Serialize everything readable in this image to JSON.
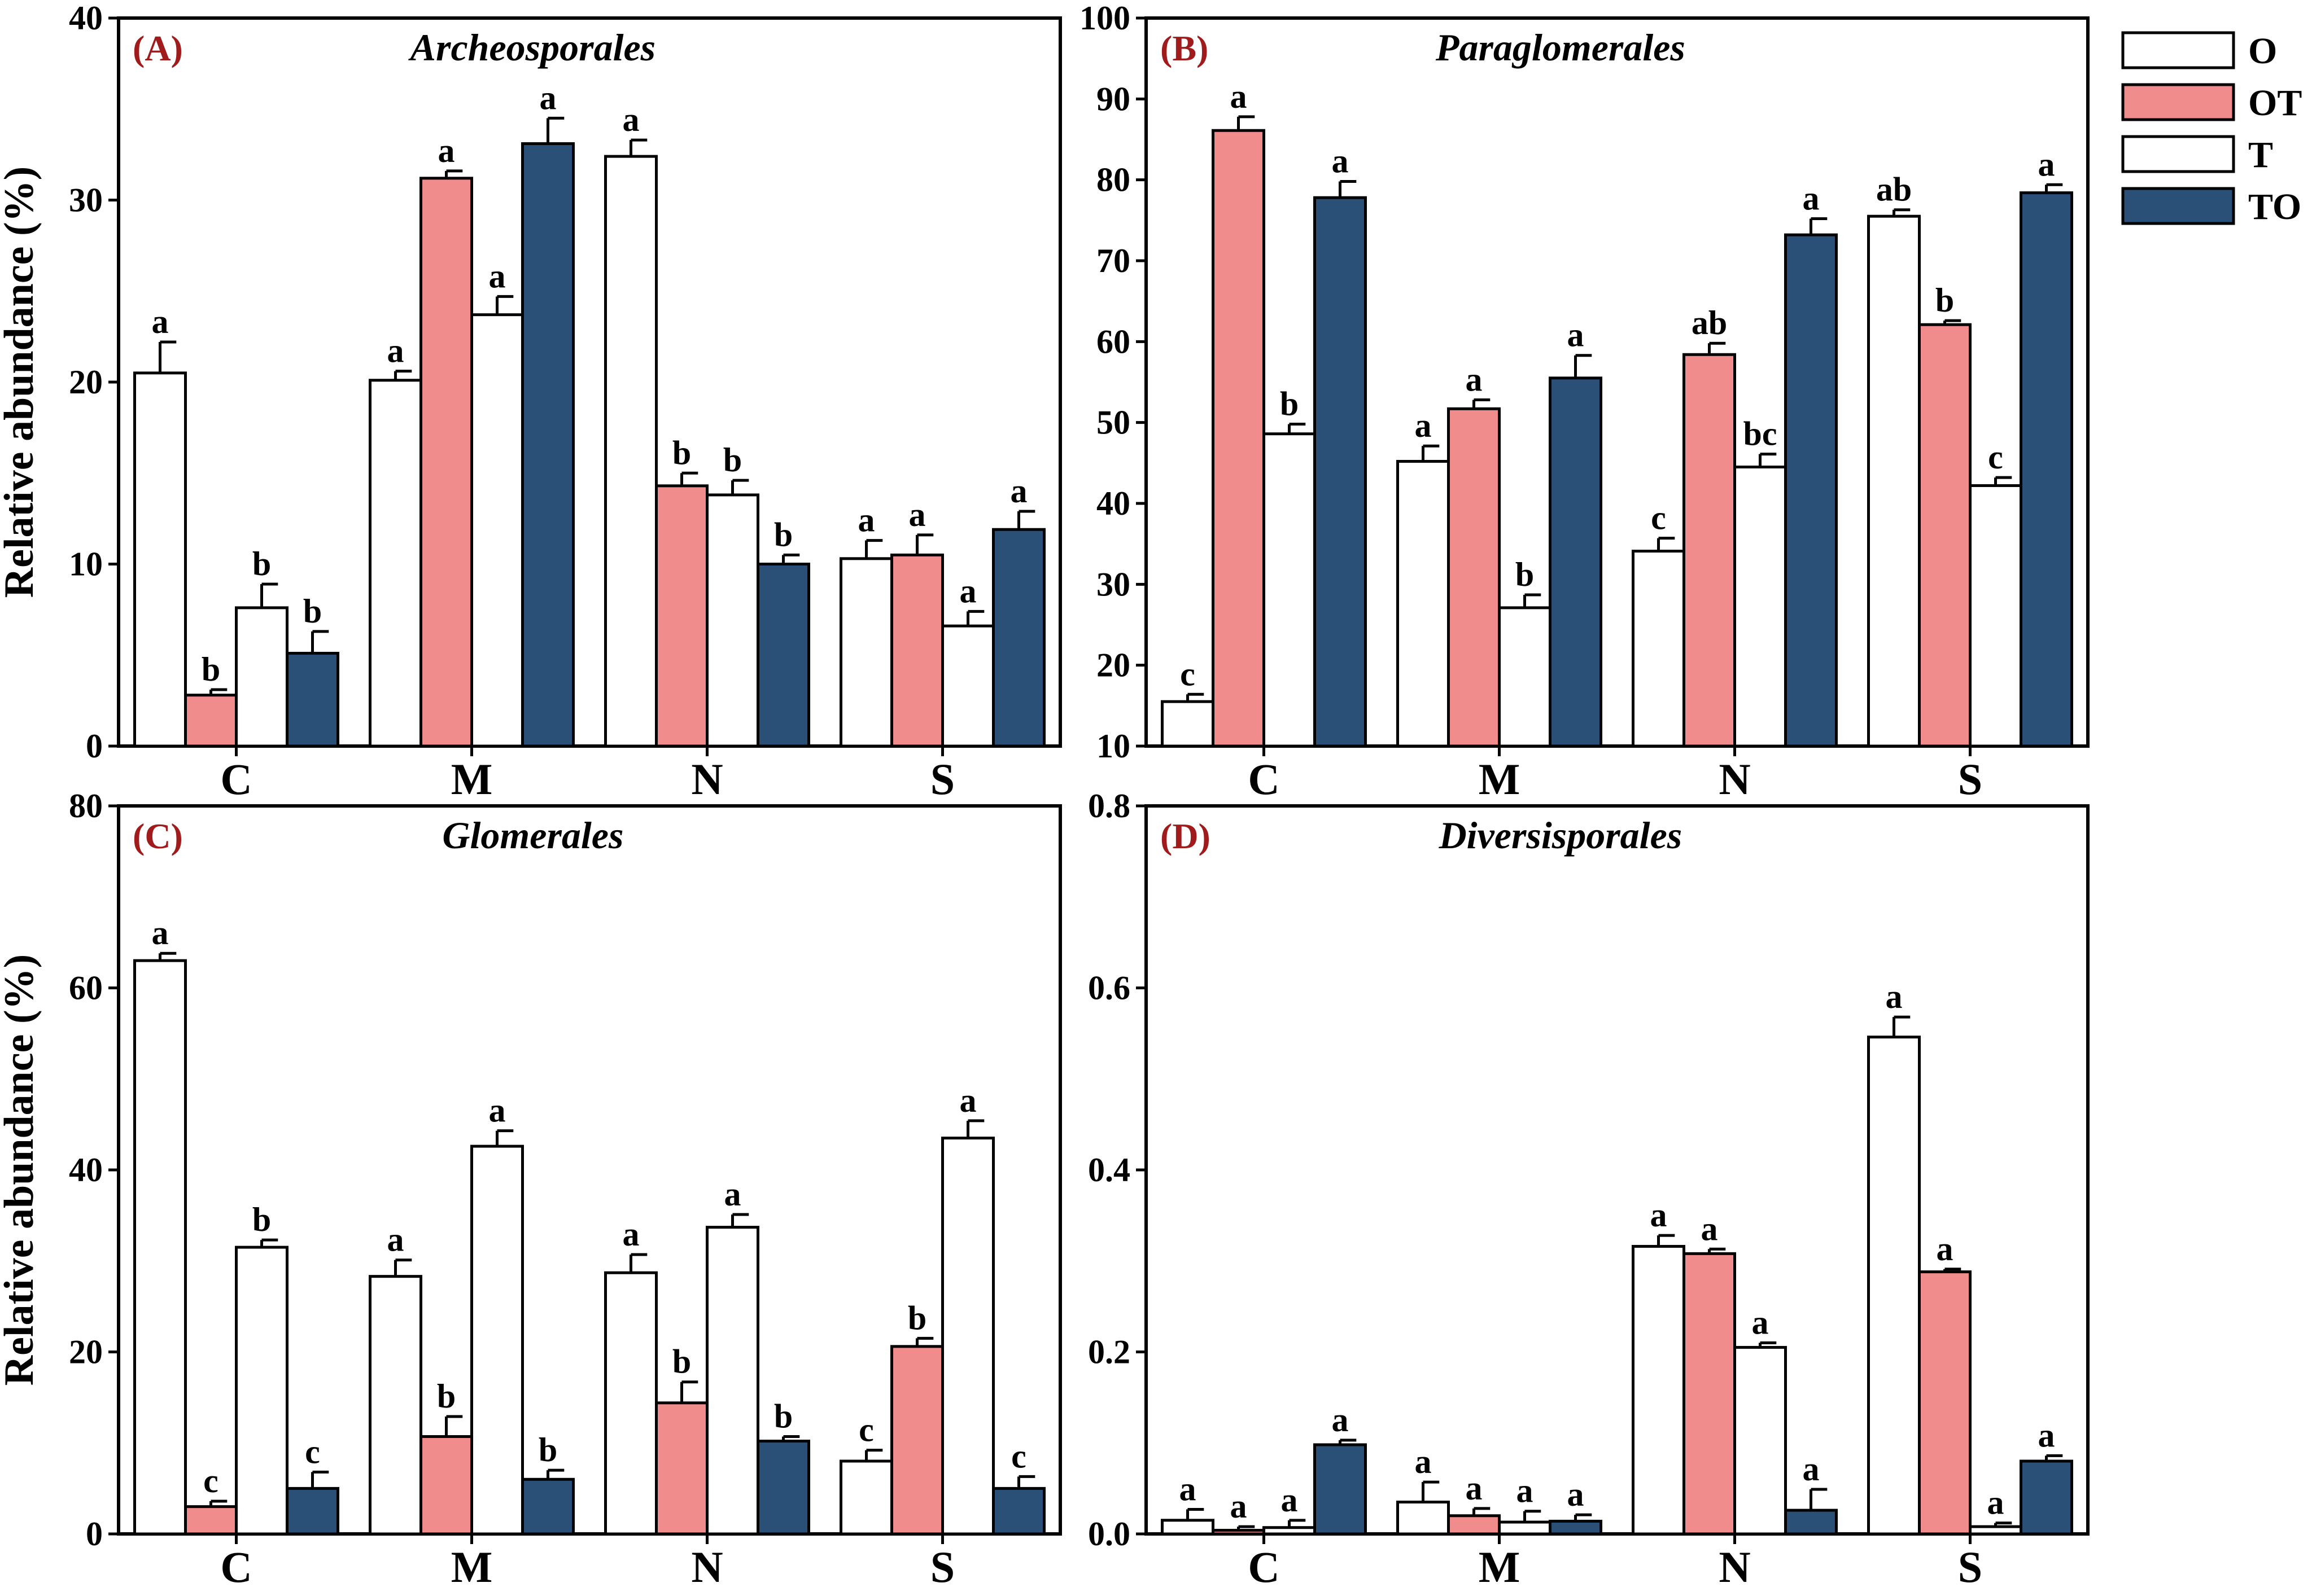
{
  "figure": {
    "ylabel": "Relative abundance (%)"
  },
  "legend": {
    "items": [
      {
        "label": "O",
        "color": "#ffffff"
      },
      {
        "label": "OT",
        "color": "#f08c8c"
      },
      {
        "label": "T",
        "color": "#ffffff"
      },
      {
        "label": "TO",
        "color": "#2a5078"
      }
    ]
  },
  "chart_data": [
    {
      "type": "bar",
      "panel": "(A)",
      "title": "Archeosporales",
      "ylabel": "Relative abundance (%)",
      "ylim": [
        0,
        40
      ],
      "yticks": [
        "0",
        "10",
        "20",
        "30",
        "40"
      ],
      "categories": [
        "C",
        "M",
        "N",
        "S"
      ],
      "series": [
        {
          "name": "O",
          "values": [
            20.5,
            20.1,
            32.4,
            10.3
          ],
          "errors": [
            1.7,
            0.5,
            0.9,
            1.0
          ],
          "letters": [
            "a",
            "a",
            "a",
            "a"
          ]
        },
        {
          "name": "OT",
          "values": [
            2.8,
            31.2,
            14.3,
            10.5
          ],
          "errors": [
            0.3,
            0.4,
            0.7,
            1.1
          ],
          "letters": [
            "b",
            "a",
            "b",
            "a"
          ]
        },
        {
          "name": "T",
          "values": [
            7.6,
            23.7,
            13.8,
            6.6
          ],
          "errors": [
            1.3,
            1.0,
            0.8,
            0.8
          ],
          "letters": [
            "b",
            "a",
            "b",
            "a"
          ]
        },
        {
          "name": "TO",
          "values": [
            5.1,
            33.1,
            10.0,
            11.9
          ],
          "errors": [
            1.2,
            1.4,
            0.5,
            1.0
          ],
          "letters": [
            "b",
            "a",
            "b",
            "a"
          ]
        }
      ]
    },
    {
      "type": "bar",
      "panel": "(B)",
      "title": "Paraglomerales",
      "ylabel": "",
      "ylim": [
        10,
        100
      ],
      "yticks": [
        "10",
        "20",
        "30",
        "40",
        "50",
        "60",
        "70",
        "80",
        "90",
        "100"
      ],
      "categories": [
        "C",
        "M",
        "N",
        "S"
      ],
      "series": [
        {
          "name": "O",
          "values": [
            15.5,
            45.2,
            34.1,
            75.5
          ],
          "errors": [
            0.9,
            1.9,
            1.6,
            0.8
          ],
          "letters": [
            "c",
            "a",
            "c",
            "ab"
          ]
        },
        {
          "name": "OT",
          "values": [
            86.1,
            51.7,
            58.4,
            62.1
          ],
          "errors": [
            1.7,
            1.1,
            1.4,
            0.5
          ],
          "letters": [
            "a",
            "a",
            "ab",
            "b"
          ]
        },
        {
          "name": "T",
          "values": [
            48.6,
            27.1,
            44.5,
            42.2
          ],
          "errors": [
            1.2,
            1.6,
            1.6,
            1.0
          ],
          "letters": [
            "b",
            "b",
            "bc",
            "c"
          ]
        },
        {
          "name": "TO",
          "values": [
            77.8,
            55.5,
            73.2,
            78.4
          ],
          "errors": [
            2.0,
            2.8,
            2.0,
            1.0
          ],
          "letters": [
            "a",
            "a",
            "a",
            "a"
          ]
        }
      ]
    },
    {
      "type": "bar",
      "panel": "(C)",
      "title": "Glomerales",
      "ylabel": "Relative abundance (%)",
      "ylim": [
        0,
        80
      ],
      "yticks": [
        "0",
        "20",
        "40",
        "60",
        "80"
      ],
      "categories": [
        "C",
        "M",
        "N",
        "S"
      ],
      "series": [
        {
          "name": "O",
          "values": [
            63.0,
            28.3,
            28.7,
            8.0
          ],
          "errors": [
            0.8,
            1.8,
            2.0,
            1.2
          ],
          "letters": [
            "a",
            "a",
            "a",
            "c"
          ]
        },
        {
          "name": "OT",
          "values": [
            3.0,
            10.7,
            14.4,
            20.6
          ],
          "errors": [
            0.6,
            2.2,
            2.3,
            0.9
          ],
          "letters": [
            "c",
            "b",
            "b",
            "b"
          ]
        },
        {
          "name": "T",
          "values": [
            31.5,
            42.6,
            33.7,
            43.5
          ],
          "errors": [
            0.8,
            1.7,
            1.4,
            1.9
          ],
          "letters": [
            "b",
            "a",
            "a",
            "a"
          ]
        },
        {
          "name": "TO",
          "values": [
            5.0,
            6.0,
            10.2,
            5.0
          ],
          "errors": [
            1.8,
            1.0,
            0.5,
            1.3
          ],
          "letters": [
            "c",
            "b",
            "b",
            "c"
          ]
        }
      ]
    },
    {
      "type": "bar",
      "panel": "(D)",
      "title": "Diversisporales",
      "ylabel": "",
      "ylim": [
        0,
        0.8
      ],
      "yticks": [
        "0.0",
        "0.2",
        "0.4",
        "0.6",
        "0.8"
      ],
      "categories": [
        "C",
        "M",
        "N",
        "S"
      ],
      "series": [
        {
          "name": "O",
          "values": [
            0.015,
            0.035,
            0.316,
            0.546
          ],
          "errors": [
            0.012,
            0.022,
            0.012,
            0.022
          ],
          "letters": [
            "a",
            "a",
            "a",
            "a"
          ]
        },
        {
          "name": "OT",
          "values": [
            0.004,
            0.02,
            0.308,
            0.288
          ],
          "errors": [
            0.004,
            0.008,
            0.005,
            0.003
          ],
          "letters": [
            "a",
            "a",
            "a",
            "a"
          ]
        },
        {
          "name": "T",
          "values": [
            0.007,
            0.013,
            0.205,
            0.008
          ],
          "errors": [
            0.008,
            0.012,
            0.005,
            0.004
          ],
          "letters": [
            "a",
            "a",
            "a",
            "a"
          ]
        },
        {
          "name": "TO",
          "values": [
            0.098,
            0.014,
            0.026,
            0.08
          ],
          "errors": [
            0.005,
            0.007,
            0.023,
            0.006
          ],
          "letters": [
            "a",
            "a",
            "a",
            "a"
          ]
        }
      ]
    }
  ]
}
